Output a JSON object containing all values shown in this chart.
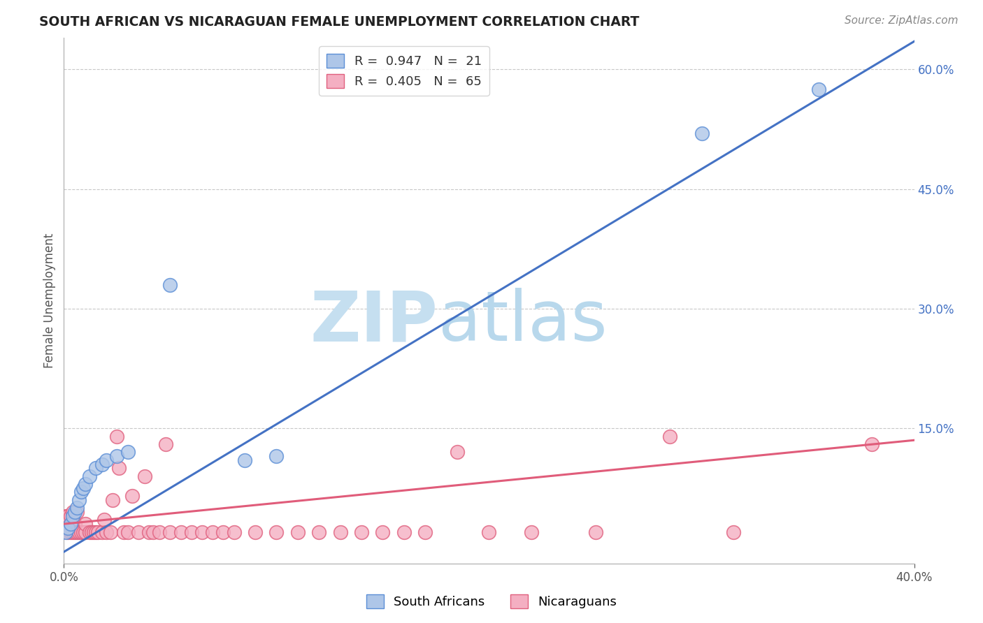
{
  "title": "SOUTH AFRICAN VS NICARAGUAN FEMALE UNEMPLOYMENT CORRELATION CHART",
  "source": "Source: ZipAtlas.com",
  "ylabel": "Female Unemployment",
  "right_yticklabels": [
    "15.0%",
    "30.0%",
    "45.0%",
    "60.0%"
  ],
  "right_yticks": [
    0.15,
    0.3,
    0.45,
    0.6
  ],
  "background_color": "#ffffff",
  "grid_color": "#c8c8c8",
  "watermark_zip_color": "#c5dff0",
  "watermark_atlas_color": "#b8d8ec",
  "sa_fill_color": "#aec6e8",
  "sa_edge_color": "#5b8ed6",
  "ni_fill_color": "#f4afc2",
  "ni_edge_color": "#e0607e",
  "sa_line_color": "#4472c4",
  "ni_line_color": "#e05c7a",
  "legend_sa_label": "R =  0.947   N =  21",
  "legend_ni_label": "R =  0.405   N =  65",
  "xlim": [
    0.0,
    0.4
  ],
  "ylim": [
    -0.02,
    0.64
  ],
  "sa_line_x0": 0.0,
  "sa_line_y0": -0.005,
  "sa_line_x1": 0.4,
  "sa_line_y1": 0.635,
  "ni_line_x0": 0.0,
  "ni_line_y0": 0.03,
  "ni_line_x1": 0.4,
  "ni_line_y1": 0.135,
  "sa_points_x": [
    0.001,
    0.002,
    0.003,
    0.004,
    0.005,
    0.006,
    0.007,
    0.008,
    0.009,
    0.01,
    0.012,
    0.015,
    0.018,
    0.02,
    0.025,
    0.03,
    0.05,
    0.085,
    0.1,
    0.3,
    0.355
  ],
  "sa_points_y": [
    0.02,
    0.025,
    0.03,
    0.04,
    0.045,
    0.05,
    0.06,
    0.07,
    0.075,
    0.08,
    0.09,
    0.1,
    0.105,
    0.11,
    0.115,
    0.12,
    0.33,
    0.11,
    0.115,
    0.52,
    0.575
  ],
  "ni_points_x": [
    0.001,
    0.001,
    0.001,
    0.002,
    0.002,
    0.002,
    0.003,
    0.003,
    0.003,
    0.004,
    0.004,
    0.004,
    0.005,
    0.005,
    0.006,
    0.006,
    0.007,
    0.008,
    0.009,
    0.01,
    0.01,
    0.012,
    0.013,
    0.014,
    0.015,
    0.016,
    0.018,
    0.019,
    0.02,
    0.022,
    0.023,
    0.025,
    0.026,
    0.028,
    0.03,
    0.032,
    0.035,
    0.038,
    0.04,
    0.042,
    0.045,
    0.048,
    0.05,
    0.055,
    0.06,
    0.065,
    0.07,
    0.075,
    0.08,
    0.09,
    0.1,
    0.11,
    0.12,
    0.13,
    0.14,
    0.15,
    0.16,
    0.17,
    0.185,
    0.2,
    0.22,
    0.25,
    0.285,
    0.315,
    0.38
  ],
  "ni_points_y": [
    0.025,
    0.03,
    0.04,
    0.02,
    0.03,
    0.04,
    0.02,
    0.03,
    0.04,
    0.02,
    0.03,
    0.045,
    0.02,
    0.03,
    0.02,
    0.045,
    0.02,
    0.02,
    0.02,
    0.02,
    0.03,
    0.02,
    0.02,
    0.02,
    0.02,
    0.02,
    0.02,
    0.035,
    0.02,
    0.02,
    0.06,
    0.14,
    0.1,
    0.02,
    0.02,
    0.065,
    0.02,
    0.09,
    0.02,
    0.02,
    0.02,
    0.13,
    0.02,
    0.02,
    0.02,
    0.02,
    0.02,
    0.02,
    0.02,
    0.02,
    0.02,
    0.02,
    0.02,
    0.02,
    0.02,
    0.02,
    0.02,
    0.02,
    0.12,
    0.02,
    0.02,
    0.02,
    0.14,
    0.02,
    0.13
  ]
}
